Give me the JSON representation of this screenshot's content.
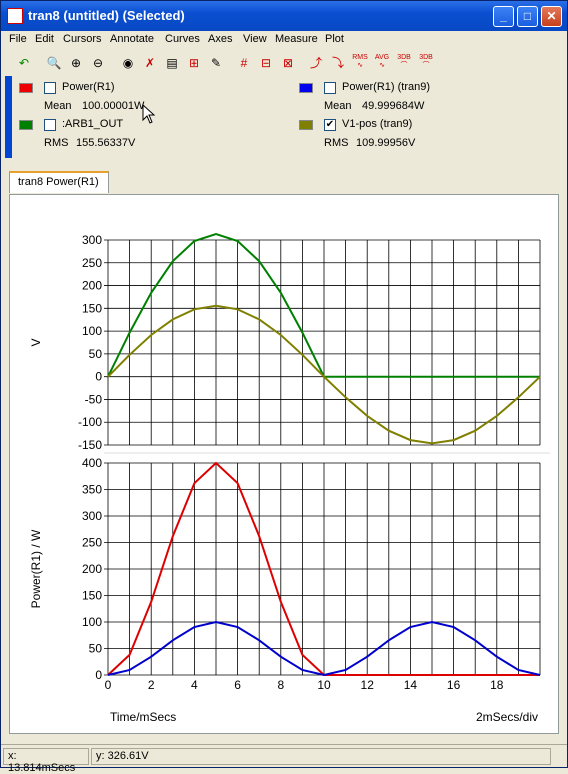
{
  "window": {
    "title": "tran8 (untitled) (Selected)"
  },
  "menu": [
    "File",
    "Edit",
    "Cursors",
    "Annotate",
    "Curves",
    "Axes",
    "View",
    "Measure",
    "Plot"
  ],
  "toolbar_icons": [
    "undo-icon",
    "zoom-fit-icon",
    "zoom-in-icon",
    "zoom-out-icon",
    "eye-icon",
    "delete-curve-icon",
    "label-icon",
    "add-grid-icon",
    "edit-icon",
    "cursor-grid-icon",
    "cursor-grid2-icon",
    "cursor-edit-icon",
    "cursor-rise-icon",
    "cursor-fall-icon",
    "rms-icon",
    "avg-icon",
    "3db-icon",
    "3db-alt-icon"
  ],
  "toolbar_text": {
    "rms": "RMS",
    "avg": "AVG",
    "db1": "3DB",
    "db2": "3DB"
  },
  "legend": [
    {
      "color": "#ee0000",
      "checked": false,
      "label": "Power(R1)",
      "measure_label": "Mean",
      "measure_value": "100.00001W"
    },
    {
      "color": "#0000ee",
      "checked": false,
      "label": "Power(R1) (tran9)",
      "measure_label": "Mean",
      "measure_value": "49.999684W"
    },
    {
      "color": "#008000",
      "checked": false,
      "label": ":ARB1_OUT",
      "measure_label": "RMS",
      "measure_value": "155.56337V"
    },
    {
      "color": "#808000",
      "checked": true,
      "label": "V1-pos (tran9)",
      "measure_label": "RMS",
      "measure_value": "109.99956V"
    }
  ],
  "tab": {
    "label": "tran8 Power(R1)"
  },
  "chart_data": [
    {
      "type": "line",
      "ylabel": "V",
      "ylim": [
        -150,
        300
      ],
      "yticks": [
        -150,
        -100,
        -50,
        0,
        50,
        100,
        150,
        200,
        250,
        300
      ],
      "xlim": [
        0,
        20
      ],
      "series": [
        {
          "color": "#008000",
          "x": [
            0,
            1,
            2,
            3,
            4,
            5,
            6,
            7,
            8,
            9,
            10,
            11,
            12,
            13,
            14,
            15,
            16,
            17,
            18,
            19,
            20
          ],
          "y": [
            0,
            96.8,
            184.1,
            253.4,
            297.9,
            313.2,
            297.9,
            253.4,
            184.1,
            96.8,
            0,
            0,
            0,
            0,
            0,
            0,
            0,
            0,
            0,
            0,
            0
          ]
        },
        {
          "color": "#808000",
          "x": [
            0,
            1,
            2,
            3,
            4,
            5,
            6,
            7,
            8,
            9,
            10,
            11,
            12,
            13,
            14,
            15,
            16,
            17,
            18,
            19,
            20
          ],
          "y": [
            0,
            48.1,
            91.4,
            125.8,
            147.9,
            155.5,
            147.9,
            125.8,
            91.4,
            48.1,
            0,
            -45.3,
            -86.1,
            -118.5,
            -139.3,
            -146.5,
            -139.3,
            -118.5,
            -86.1,
            -45.3,
            0
          ]
        }
      ]
    },
    {
      "type": "line",
      "ylabel": "Power(R1) / W",
      "ylim": [
        0,
        400
      ],
      "yticks": [
        0,
        50,
        100,
        150,
        200,
        250,
        300,
        350,
        400
      ],
      "xlim": [
        0,
        20
      ],
      "xticks": [
        0,
        2,
        4,
        6,
        8,
        10,
        12,
        14,
        16,
        18
      ],
      "xlabel": "Time/mSecs",
      "xdiv": "2mSecs/div",
      "series": [
        {
          "color": "#dd0000",
          "x": [
            0,
            1,
            2,
            3,
            4,
            5,
            6,
            7,
            8,
            9,
            10,
            11,
            12,
            13,
            14,
            15,
            16,
            17,
            18,
            19,
            20
          ],
          "y": [
            0,
            38.2,
            138.2,
            261.8,
            361.8,
            400,
            361.8,
            261.8,
            138.2,
            38.2,
            0,
            0,
            0,
            0,
            0,
            0,
            0,
            0,
            0,
            0,
            0
          ]
        },
        {
          "color": "#0000cc",
          "x": [
            0,
            1,
            2,
            3,
            4,
            5,
            6,
            7,
            8,
            9,
            10,
            11,
            12,
            13,
            14,
            15,
            16,
            17,
            18,
            19,
            20
          ],
          "y": [
            0,
            9.5,
            34.5,
            65.5,
            90.5,
            100,
            90.5,
            65.5,
            34.5,
            9.5,
            0,
            9.5,
            34.5,
            65.5,
            90.5,
            100,
            90.5,
            65.5,
            34.5,
            9.5,
            0
          ]
        }
      ]
    }
  ],
  "status": {
    "x": "x: 13.814mSecs",
    "y": "y: 326.61V"
  }
}
